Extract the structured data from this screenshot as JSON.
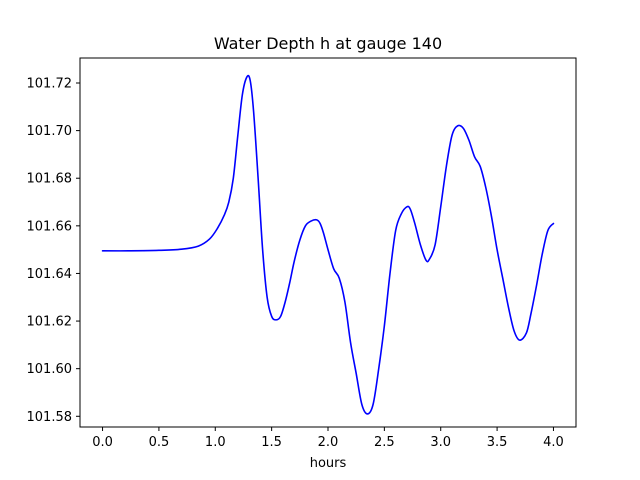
{
  "chart_data": {
    "type": "line",
    "title": "Water Depth h at gauge 140",
    "xlabel": "hours",
    "ylabel": "",
    "xlim": [
      -0.2,
      4.2
    ],
    "ylim": [
      101.5755,
      101.7305
    ],
    "x_ticks": [
      0.0,
      0.5,
      1.0,
      1.5,
      2.0,
      2.5,
      3.0,
      3.5,
      4.0
    ],
    "x_tick_labels": [
      "0.0",
      "0.5",
      "1.0",
      "1.5",
      "2.0",
      "2.5",
      "3.0",
      "3.5",
      "4.0"
    ],
    "y_ticks": [
      101.58,
      101.6,
      101.62,
      101.64,
      101.66,
      101.68,
      101.7,
      101.72
    ],
    "y_tick_labels": [
      "101.58",
      "101.60",
      "101.62",
      "101.64",
      "101.66",
      "101.68",
      "101.70",
      "101.72"
    ],
    "grid": false,
    "series": [
      {
        "color": "#0000ff",
        "x": [
          0.0,
          0.25,
          0.5,
          0.7,
          0.85,
          0.95,
          1.02,
          1.08,
          1.12,
          1.16,
          1.2,
          1.24,
          1.28,
          1.31,
          1.34,
          1.38,
          1.42,
          1.46,
          1.5,
          1.54,
          1.58,
          1.62,
          1.66,
          1.7,
          1.75,
          1.8,
          1.85,
          1.9,
          1.93,
          1.96,
          2.0,
          2.05,
          2.1,
          2.15,
          2.2,
          2.25,
          2.3,
          2.35,
          2.4,
          2.45,
          2.5,
          2.55,
          2.6,
          2.65,
          2.7,
          2.73,
          2.77,
          2.82,
          2.87,
          2.9,
          2.95,
          3.0,
          3.05,
          3.1,
          3.15,
          3.2,
          3.25,
          3.3,
          3.35,
          3.4,
          3.45,
          3.5,
          3.55,
          3.6,
          3.65,
          3.7,
          3.76,
          3.8,
          3.85,
          3.9,
          3.95,
          4.0
        ],
        "values": [
          101.6495,
          101.6495,
          101.6497,
          101.6502,
          101.6515,
          101.6545,
          101.659,
          101.6645,
          101.67,
          101.68,
          101.698,
          101.715,
          101.7225,
          101.721,
          101.708,
          101.68,
          101.65,
          101.63,
          101.622,
          101.6205,
          101.622,
          101.628,
          101.636,
          101.645,
          101.654,
          101.66,
          101.662,
          101.6625,
          101.661,
          101.657,
          101.65,
          101.642,
          101.638,
          101.628,
          101.611,
          101.598,
          101.585,
          101.581,
          101.585,
          101.6,
          101.618,
          101.64,
          101.658,
          101.665,
          101.668,
          101.667,
          101.661,
          101.652,
          101.6455,
          101.646,
          101.652,
          101.668,
          101.685,
          101.698,
          101.702,
          101.701,
          101.696,
          101.689,
          101.685,
          101.676,
          101.664,
          101.65,
          101.638,
          101.626,
          101.616,
          101.612,
          101.615,
          101.623,
          101.635,
          101.648,
          101.658,
          101.661
        ]
      }
    ]
  }
}
